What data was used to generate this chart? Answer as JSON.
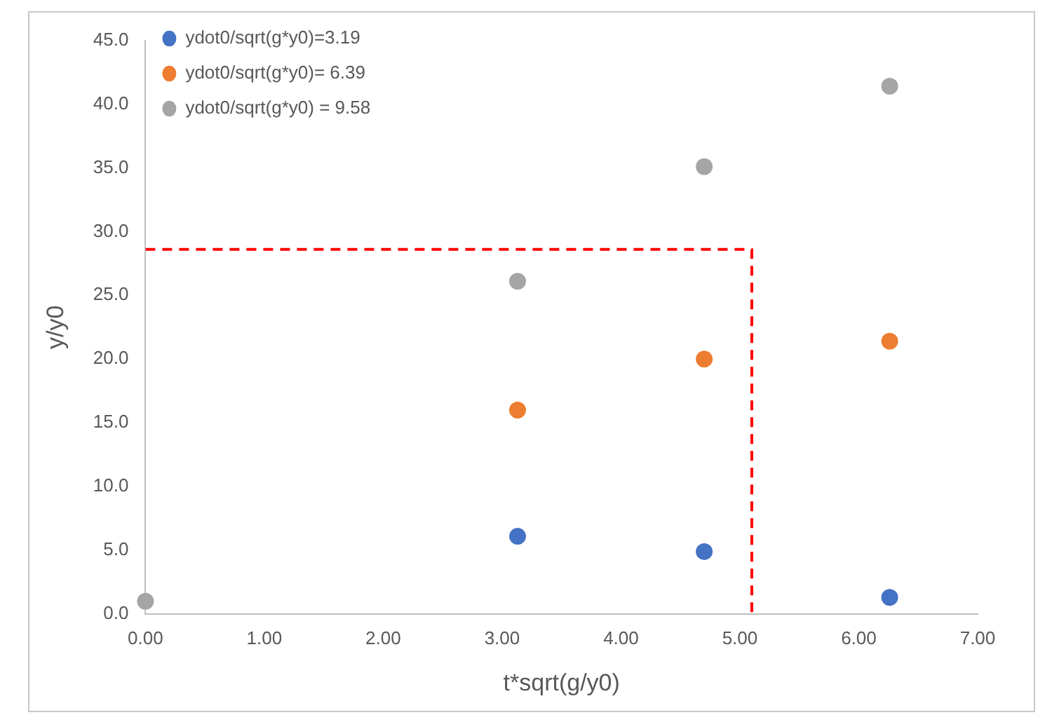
{
  "chart_data": {
    "type": "scatter",
    "xlabel": "t*sqrt(g/y0)",
    "ylabel": "y/y0",
    "series": [
      {
        "name": "ydot0/sqrt(g*y0)=3.19",
        "color": "#4472c4",
        "x": [
          3.13,
          4.7,
          6.26
        ],
        "values": [
          6.1,
          4.9,
          1.3
        ]
      },
      {
        "name": "ydot0/sqrt(g*y0)= 6.39",
        "color": "#ed7d31",
        "x": [
          3.13,
          4.7,
          6.26
        ],
        "values": [
          16.0,
          20.0,
          21.4
        ]
      },
      {
        "name": "ydot0/sqrt(g*y0) = 9.58",
        "color": "#a5a5a5",
        "x": [
          0,
          3.13,
          4.7,
          6.26
        ],
        "values": [
          1,
          26.1,
          35.1,
          41.4
        ]
      },
      {
        "type": "line",
        "color": "#ff0000",
        "line_style": "dashed",
        "marker": "none",
        "x": [
          0,
          5.1,
          5.1
        ],
        "values": [
          28.6,
          28.6,
          0
        ]
      }
    ],
    "xlim": [
      0,
      7
    ],
    "xticks": [
      {
        "value": 0,
        "label": "0.00"
      },
      {
        "value": 1,
        "label": "1.00"
      },
      {
        "value": 2,
        "label": "2.00"
      },
      {
        "value": 3,
        "label": "3.00"
      },
      {
        "value": 4,
        "label": "4.00"
      },
      {
        "value": 5,
        "label": "5.00"
      },
      {
        "value": 6,
        "label": "6.00"
      },
      {
        "value": 7,
        "label": "7.00"
      }
    ],
    "ylim": [
      0,
      45
    ],
    "yticks": [
      {
        "value": 0,
        "label": "0.0"
      },
      {
        "value": 5,
        "label": "5.0"
      },
      {
        "value": 10,
        "label": "10.0"
      },
      {
        "value": 15,
        "label": "15.0"
      },
      {
        "value": 20,
        "label": "20.0"
      },
      {
        "value": 25,
        "label": "25.0"
      },
      {
        "value": 30,
        "label": "30.0"
      },
      {
        "value": 35,
        "label": "35.0"
      },
      {
        "value": 40,
        "label": "40.0"
      },
      {
        "value": 45,
        "label": "45.0"
      }
    ],
    "grid": false,
    "legend": "top left",
    "marker": "circle"
  }
}
